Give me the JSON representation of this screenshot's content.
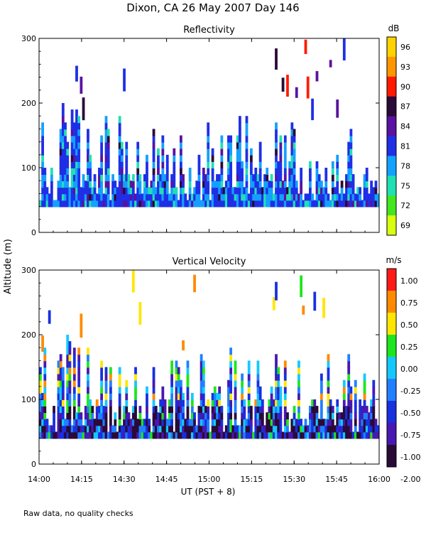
{
  "figure": {
    "title": "Dixon, CA 26 May 2007  Day 146",
    "ylabel": "Altitude (m)",
    "xlabel": "UT  (PST + 8)",
    "footnote": "Raw data, no quality checks"
  },
  "chart_data": [
    {
      "type": "heatmap",
      "title": "Reflectivity",
      "xlabel": "UT  (PST + 8)",
      "ylabel": "Altitude (m)",
      "x_range": [
        "14:00",
        "16:00"
      ],
      "x_ticks": [
        "14:00",
        "14:15",
        "14:30",
        "14:45",
        "15:00",
        "15:15",
        "15:30",
        "15:45",
        "16:00"
      ],
      "ylim": [
        0,
        300
      ],
      "y_ticks": [
        0,
        100,
        200,
        300
      ],
      "colorbar": {
        "unit": "dB",
        "labels": [
          "96",
          "93",
          "90",
          "87",
          "84",
          "81",
          "78",
          "75",
          "72",
          "69"
        ],
        "colors": [
          "#ffd200",
          "#ff9600",
          "#ff1a00",
          "#2a0a36",
          "#5a12a0",
          "#1f2fe6",
          "#14a0ff",
          "#20e0b4",
          "#44e61e",
          "#d8ff10"
        ]
      }
    },
    {
      "type": "heatmap",
      "title": "Vertical Velocity",
      "xlabel": "UT  (PST + 8)",
      "ylabel": "Altitude (m)",
      "x_range": [
        "14:00",
        "16:00"
      ],
      "x_ticks": [
        "14:00",
        "14:15",
        "14:30",
        "14:45",
        "15:00",
        "15:15",
        "15:30",
        "15:45",
        "16:00"
      ],
      "ylim": [
        0,
        300
      ],
      "y_ticks": [
        0,
        100,
        200,
        300
      ],
      "colorbar": {
        "unit": "m/s",
        "labels": [
          "1.00",
          "0.75",
          "0.50",
          "0.25",
          "0.00",
          "-0.25",
          "-0.50",
          "-0.75",
          "-1.00",
          "-2.00"
        ],
        "colors": [
          "#ff1a1a",
          "#ff8a00",
          "#ffe600",
          "#1ee61e",
          "#14c8ff",
          "#2080ff",
          "#1830e0",
          "#4818b0",
          "#2a0a36"
        ]
      }
    }
  ]
}
